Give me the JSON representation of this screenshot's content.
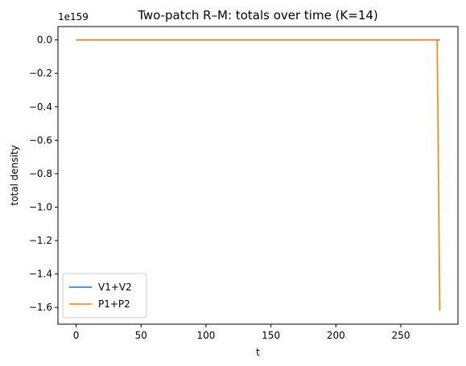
{
  "chart_data": {
    "type": "line",
    "title": "Two-patch R–M: totals over time (K=14)",
    "xlabel": "t",
    "ylabel": "total density",
    "y_offset_label": "1e159",
    "y_scale_factor": 1e+159,
    "xlim": [
      -14,
      294
    ],
    "ylim": [
      -1.7,
      0.08
    ],
    "x_ticks": [
      0,
      50,
      100,
      150,
      200,
      250
    ],
    "x_tick_labels": [
      "0",
      "50",
      "100",
      "150",
      "200",
      "250"
    ],
    "y_ticks": [
      0.0,
      -0.2,
      -0.4,
      -0.6,
      -0.8,
      -1.0,
      -1.2,
      -1.4,
      -1.6
    ],
    "y_tick_labels": [
      "0.0",
      "−0.2",
      "−0.4",
      "−0.6",
      "−0.8",
      "−1.0",
      "−1.2",
      "−1.4",
      "−1.6"
    ],
    "grid": false,
    "legend_position": "lower-left",
    "series": [
      {
        "name": "V1+V2",
        "color": "#1f77b4",
        "x": [
          0,
          50,
          100,
          150,
          200,
          250,
          278,
          280
        ],
        "y": [
          0,
          0,
          0,
          0,
          0,
          0,
          0,
          0
        ]
      },
      {
        "name": "P1+P2",
        "color": "#ff7f0e",
        "x": [
          0,
          50,
          100,
          150,
          200,
          250,
          276,
          278,
          280
        ],
        "y": [
          0,
          0,
          0,
          0,
          0,
          0,
          0,
          0,
          -1.62
        ]
      }
    ]
  }
}
